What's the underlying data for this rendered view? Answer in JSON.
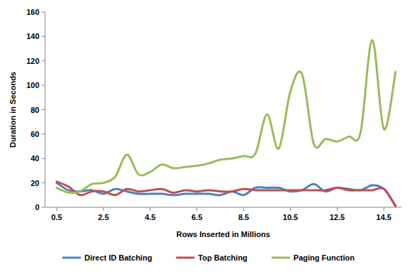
{
  "chart_data": {
    "type": "line",
    "x_label": "Rows Inserted in Millions",
    "y_label": "Duration in Seconds",
    "x": [
      0.5,
      1,
      1.5,
      2,
      2.5,
      3,
      3.5,
      4,
      4.5,
      5,
      5.5,
      6,
      6.5,
      7,
      7.5,
      8,
      8.5,
      9,
      9.5,
      10,
      10.5,
      11,
      11.5,
      12,
      12.5,
      13,
      13.5,
      14,
      14.5,
      15
    ],
    "xlim": [
      0,
      15.25
    ],
    "xticks": [
      0.5,
      2.5,
      4.5,
      6.5,
      8.5,
      10.5,
      12.5,
      14.5
    ],
    "ylim": [
      0,
      160
    ],
    "yticks": [
      0,
      20,
      40,
      60,
      80,
      100,
      120,
      140,
      160
    ],
    "grid": false,
    "legend": "bottom",
    "series": [
      {
        "name": "Direct ID Batching",
        "color": "#4f81bd",
        "values": [
          20,
          14,
          13,
          14,
          11,
          15,
          13,
          11,
          11,
          11,
          10,
          11,
          11,
          11,
          10,
          13,
          10,
          16,
          16,
          16,
          13,
          14,
          19,
          13,
          16,
          15,
          14,
          18,
          15,
          1
        ]
      },
      {
        "name": "Top Batching",
        "color": "#c0504d",
        "values": [
          21,
          17,
          10,
          13,
          13,
          10,
          15,
          13,
          14,
          15,
          12,
          14,
          13,
          14,
          13,
          13,
          15,
          14,
          14,
          14,
          14,
          14,
          14,
          14,
          16,
          14,
          14,
          14,
          15,
          1
        ]
      },
      {
        "name": "Paging Function",
        "color": "#9bbb59",
        "values": [
          16,
          12,
          13,
          19,
          20,
          25,
          43,
          27,
          29,
          35,
          32,
          33,
          34,
          36,
          39,
          40,
          42,
          44,
          76,
          48,
          95,
          109,
          52,
          56,
          54,
          58,
          61,
          137,
          64,
          111
        ]
      }
    ]
  }
}
